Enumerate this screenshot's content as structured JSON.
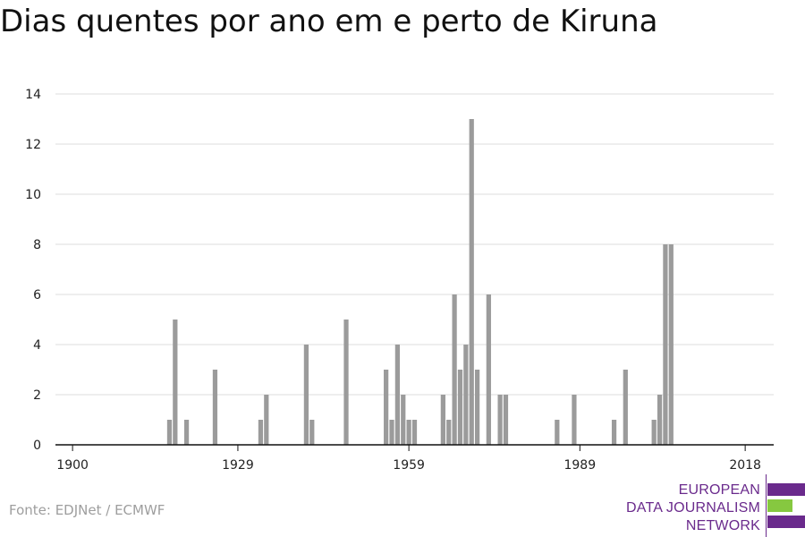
{
  "title": "Dias quentes por ano em e perto de Kiruna",
  "source": "Fonte: EDJNet / ECMWF",
  "logo": {
    "line1": "EUROPEAN",
    "line2": "DATA JOURNALISM",
    "line3": "NETWORK"
  },
  "colors": {
    "bar": "#9b9b9b",
    "grid": "#dddddd",
    "axis": "#111111",
    "logo_purple": "#6a2a8c",
    "logo_green": "#86c840"
  },
  "chart_data": {
    "type": "bar",
    "title": "Dias quentes por ano em e perto de Kiruna",
    "xlabel": "",
    "ylabel": "",
    "xlim": [
      1897,
      2023
    ],
    "ylim": [
      0,
      14
    ],
    "x_ticks": [
      1900,
      1929,
      1959,
      1989,
      2018
    ],
    "y_ticks": [
      0,
      2,
      4,
      6,
      8,
      10,
      12,
      14
    ],
    "grid": "horizontal",
    "series": [
      {
        "x": [
          1906,
          1907,
          1908,
          1913,
          1917,
          1918,
          1919,
          1920,
          1921,
          1925,
          1932,
          1933,
          1934,
          1941,
          1942,
          1948,
          1955,
          1956,
          1957,
          1958,
          1959,
          1960,
          1965,
          1966,
          1967,
          1968,
          1969,
          1970,
          1971,
          1973,
          1975,
          1976,
          1985,
          1988,
          1995,
          1997,
          2002,
          2003,
          2003,
          2004,
          2005,
          2007,
          2011,
          2013
        ],
        "values": [
          0,
          0,
          0,
          0,
          1,
          5,
          0,
          1,
          0,
          3,
          0,
          1,
          2,
          4,
          1,
          5,
          3,
          1,
          4,
          2,
          1,
          1,
          2,
          1,
          6,
          3,
          4,
          13,
          3,
          6,
          2,
          2,
          1,
          2,
          1,
          3,
          1,
          2,
          1,
          8,
          8,
          0,
          0,
          0
        ]
      }
    ]
  }
}
